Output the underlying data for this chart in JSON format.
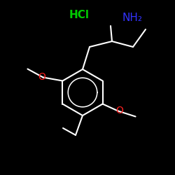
{
  "background_color": "#000000",
  "bond_color": "#ffffff",
  "bond_lw": 1.5,
  "hcl_label": "HCl",
  "hcl_color": "#00cc00",
  "nh2_label": "NH₂",
  "nh2_color": "#3333ff",
  "o_color": "#ff2020",
  "o_label": "O",
  "figsize": [
    2.5,
    2.5
  ],
  "dpi": 100
}
